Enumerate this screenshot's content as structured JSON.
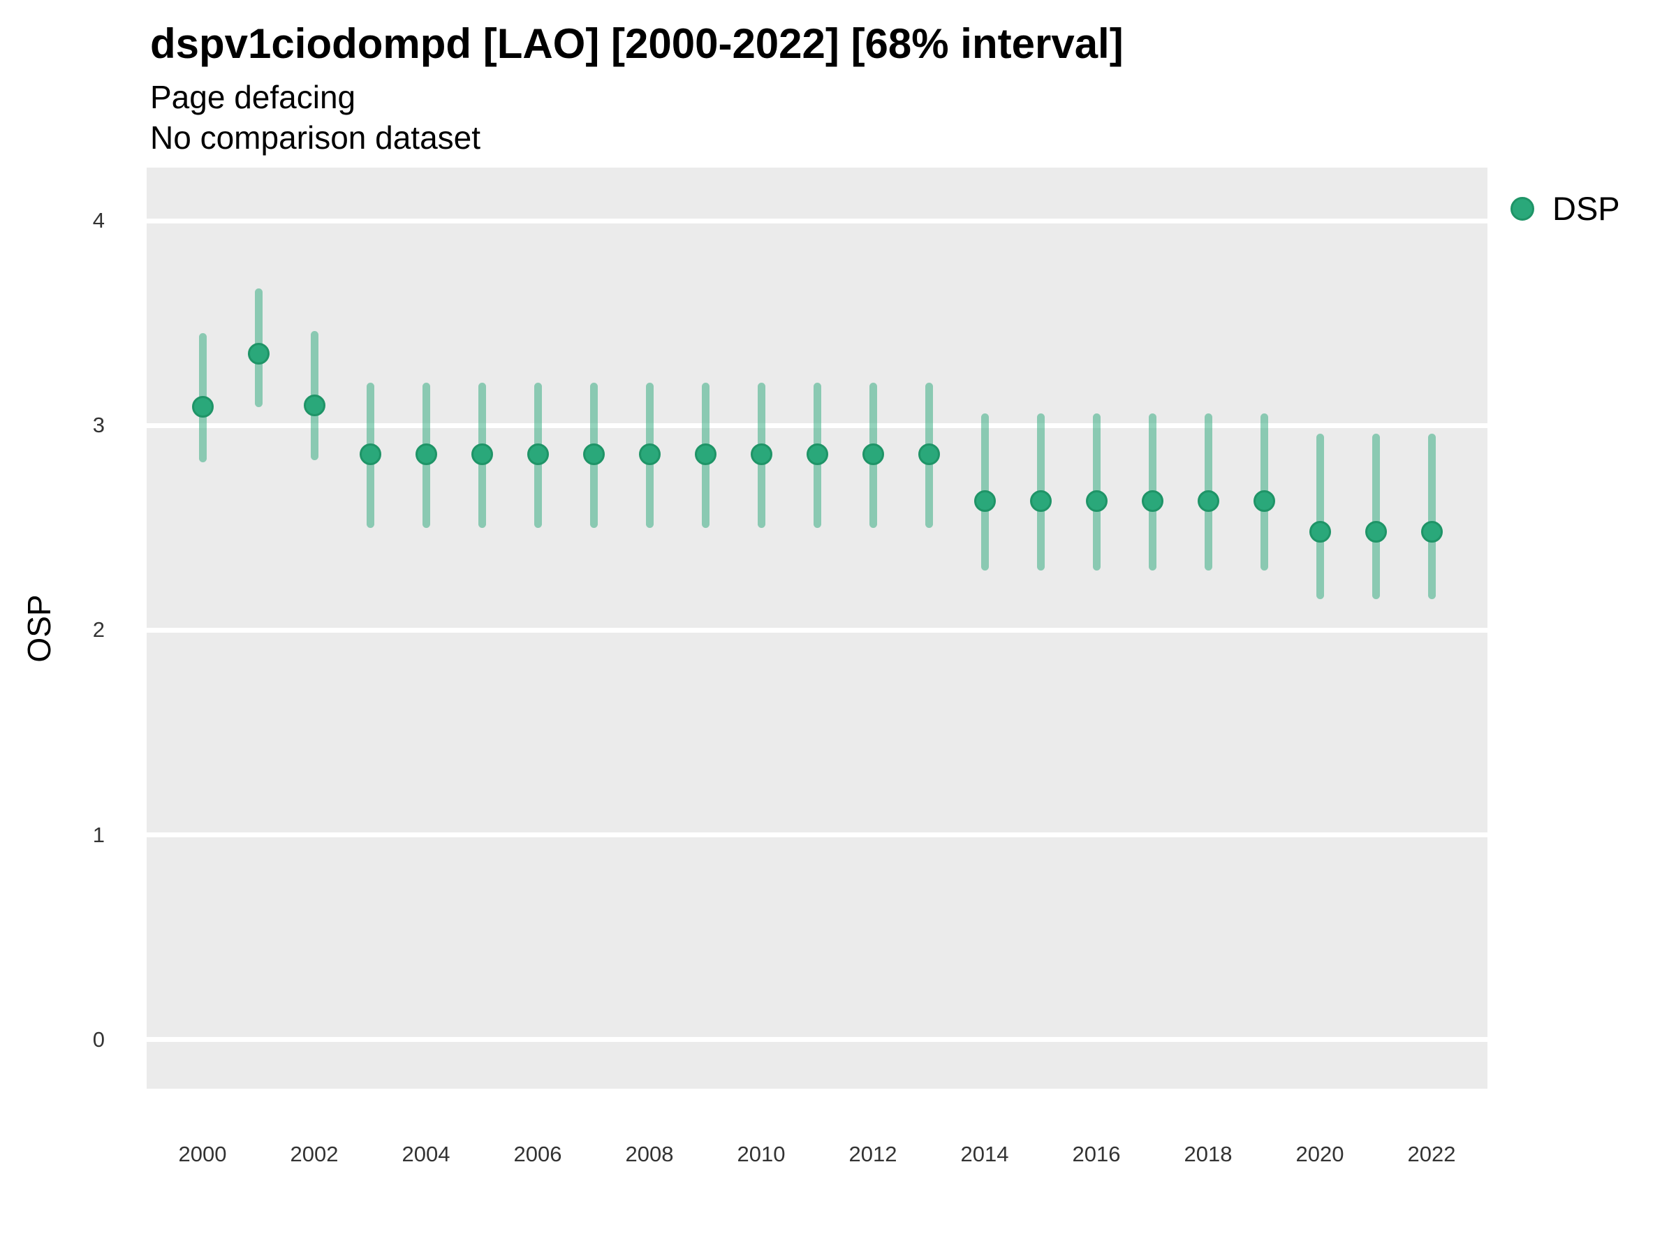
{
  "header": {
    "title": "dspv1ciodompd [LAO] [2000-2022] [68% interval]",
    "subtitle_line1": "Page defacing",
    "subtitle_line2": "No comparison dataset"
  },
  "legend": {
    "label": "DSP"
  },
  "colors": {
    "panel_bg": "#EBEBEB",
    "gridline": "#FFFFFF",
    "point_fill": "#2AA87A",
    "point_border": "#1F9467",
    "interval_bar": "rgba(42,168,122,0.5)",
    "title_text": "#000000",
    "tick_text": "#333333"
  },
  "chart_data": {
    "type": "scatter",
    "title": "dspv1ciodompd [LAO] [2000-2022] [68% interval]",
    "subtitle": [
      "Page defacing",
      "No comparison dataset"
    ],
    "xlabel": "",
    "ylabel": "OSP",
    "interval_level": "68%",
    "legend_position": "right",
    "grid": "major-y-only",
    "xlim": [
      1999,
      2023
    ],
    "ylim": [
      -0.24,
      4.26
    ],
    "xticks": [
      2000,
      2002,
      2004,
      2006,
      2008,
      2010,
      2012,
      2014,
      2016,
      2018,
      2020,
      2022
    ],
    "yticks": [
      4,
      3,
      2,
      1,
      0
    ],
    "x": [
      2000,
      2001,
      2002,
      2003,
      2004,
      2005,
      2006,
      2007,
      2008,
      2009,
      2010,
      2011,
      2012,
      2013,
      2014,
      2015,
      2016,
      2017,
      2018,
      2019,
      2020,
      2021,
      2022
    ],
    "series": [
      {
        "name": "DSP",
        "median": [
          3.09,
          3.35,
          3.1,
          2.86,
          2.86,
          2.86,
          2.86,
          2.86,
          2.86,
          2.86,
          2.86,
          2.86,
          2.86,
          2.86,
          2.63,
          2.63,
          2.63,
          2.63,
          2.63,
          2.63,
          2.48,
          2.48,
          2.48
        ],
        "lower": [
          2.82,
          3.09,
          2.83,
          2.5,
          2.5,
          2.5,
          2.5,
          2.5,
          2.5,
          2.5,
          2.5,
          2.5,
          2.5,
          2.5,
          2.29,
          2.29,
          2.29,
          2.29,
          2.29,
          2.29,
          2.15,
          2.15,
          2.15
        ],
        "upper": [
          3.45,
          3.67,
          3.46,
          3.21,
          3.21,
          3.21,
          3.21,
          3.21,
          3.21,
          3.21,
          3.21,
          3.21,
          3.21,
          3.21,
          3.06,
          3.06,
          3.06,
          3.06,
          3.06,
          3.06,
          2.96,
          2.96,
          2.96
        ]
      }
    ]
  }
}
